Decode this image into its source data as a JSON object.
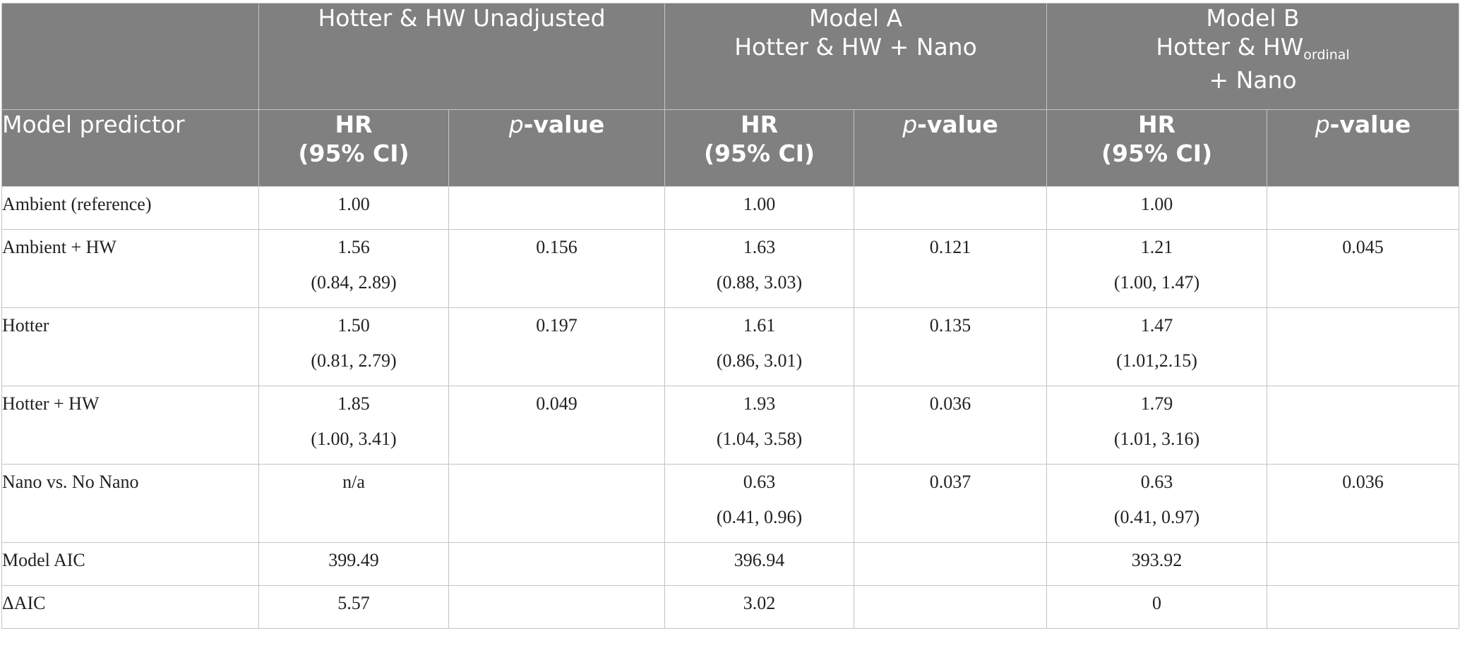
{
  "header": {
    "group_unadjusted": "Hotter & HW Unadjusted",
    "group_model_a": {
      "line1": "Model A",
      "line2": "Hotter & HW + Nano"
    },
    "group_model_b": {
      "line1": "Model B",
      "line2_main": "Hotter & HW",
      "line2_sub": "ordinal",
      "line3": "+ Nano"
    },
    "model_predictor": "Model predictor",
    "hr_line1": "HR",
    "hr_line2": "(95% CI)",
    "p_italic": "p",
    "p_suffix": "-value"
  },
  "rows": [
    {
      "label": "Ambient (reference)",
      "u_hr": "1.00",
      "u_ci": "",
      "u_p": "",
      "a_hr": "1.00",
      "a_ci": "",
      "a_p": "",
      "b_hr": "1.00",
      "b_ci": "",
      "b_p": ""
    },
    {
      "label": "Ambient + HW",
      "u_hr": "1.56",
      "u_ci": "(0.84, 2.89)",
      "u_p": "0.156",
      "a_hr": "1.63",
      "a_ci": "(0.88, 3.03)",
      "a_p": "0.121",
      "b_hr": "1.21",
      "b_ci": "(1.00, 1.47)",
      "b_p": "0.045"
    },
    {
      "label": "Hotter",
      "u_hr": "1.50",
      "u_ci": "(0.81, 2.79)",
      "u_p": "0.197",
      "a_hr": "1.61",
      "a_ci": "(0.86, 3.01)",
      "a_p": "0.135",
      "b_hr": "1.47",
      "b_ci": "(1.01,2.15)",
      "b_p": ""
    },
    {
      "label": "Hotter + HW",
      "u_hr": "1.85",
      "u_ci": "(1.00, 3.41)",
      "u_p": "0.049",
      "a_hr": "1.93",
      "a_ci": "(1.04, 3.58)",
      "a_p": "0.036",
      "b_hr": "1.79",
      "b_ci": "(1.01, 3.16)",
      "b_p": ""
    },
    {
      "label": "Nano vs. No Nano",
      "u_hr": "n/a",
      "u_ci": "",
      "u_p": "",
      "a_hr": "0.63",
      "a_ci": "(0.41, 0.96)",
      "a_p": "0.037",
      "b_hr": "0.63",
      "b_ci": "(0.41, 0.97)",
      "b_p": "0.036"
    },
    {
      "label": "Model AIC",
      "u_hr": "399.49",
      "u_ci": "",
      "u_p": "",
      "a_hr": "396.94",
      "a_ci": "",
      "a_p": "",
      "b_hr": "393.92",
      "b_ci": "",
      "b_p": ""
    },
    {
      "label": "ΔAIC",
      "u_hr": "5.57",
      "u_ci": "",
      "u_p": "",
      "a_hr": "3.02",
      "a_ci": "",
      "a_p": "",
      "b_hr": "0",
      "b_ci": "",
      "b_p": ""
    }
  ]
}
